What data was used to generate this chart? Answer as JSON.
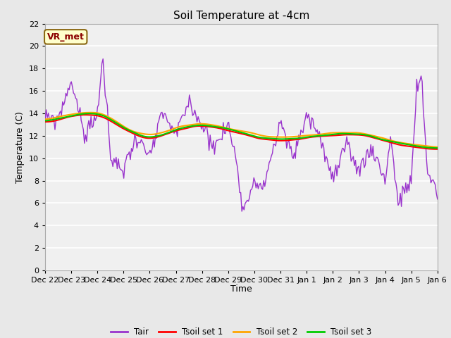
{
  "title": "Soil Temperature at -4cm",
  "xlabel": "Time",
  "ylabel": "Temperature (C)",
  "ylim": [
    0,
    22
  ],
  "yticks": [
    0,
    2,
    4,
    6,
    8,
    10,
    12,
    14,
    16,
    18,
    20,
    22
  ],
  "fig_bg_color": "#e8e8e8",
  "plot_bg_color": "#f0f0f0",
  "grid_color": "#ffffff",
  "annotation_text": "VR_met",
  "annotation_bg": "#ffffcc",
  "annotation_fg": "#8b0000",
  "annotation_border": "#8b6914",
  "tair_color": "#9933cc",
  "tsoil1_color": "#ff0000",
  "tsoil2_color": "#ffa500",
  "tsoil3_color": "#00cc00",
  "legend_labels": [
    "Tair",
    "Tsoil set 1",
    "Tsoil set 2",
    "Tsoil set 3"
  ],
  "x_tick_labels": [
    "Dec 22",
    "Dec 23",
    "Dec 24",
    "Dec 25",
    "Dec 26",
    "Dec 27",
    "Dec 28",
    "Dec 29",
    "Dec 30",
    "Dec 31",
    "Jan 1",
    "Jan 2",
    "Jan 3",
    "Jan 4",
    "Jan 5",
    "Jan 6"
  ],
  "n_days": 15,
  "n_points": 360
}
